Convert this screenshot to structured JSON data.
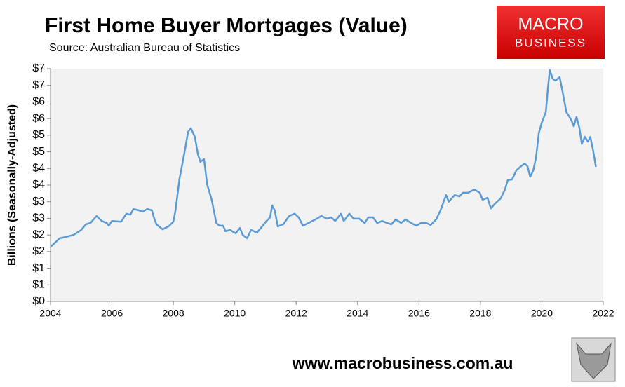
{
  "chart_data": {
    "type": "line",
    "title": "First Home Buyer Mortgages (Value)",
    "subtitle": "Source: Australian Bureau of Statistics",
    "y_label": "Billions (Seasonally-Adjusted)",
    "logo": [
      "MACRO",
      "BUSINESS"
    ],
    "footer": "www.macrobusiness.com.au",
    "x": [
      2004.0,
      2004.3,
      2004.5,
      2004.75,
      2005.0,
      2005.15,
      2005.3,
      2005.5,
      2005.67,
      2005.83,
      2005.9,
      2006.0,
      2006.3,
      2006.47,
      2006.6,
      2006.7,
      2006.88,
      2007.0,
      2007.15,
      2007.3,
      2007.35,
      2007.45,
      2007.65,
      2007.85,
      2008.0,
      2008.07,
      2008.2,
      2008.36,
      2008.48,
      2008.57,
      2008.7,
      2008.8,
      2008.88,
      2009.0,
      2009.1,
      2009.25,
      2009.4,
      2009.5,
      2009.62,
      2009.7,
      2009.85,
      2010.03,
      2010.17,
      2010.26,
      2010.4,
      2010.53,
      2010.72,
      2010.85,
      2011.03,
      2011.15,
      2011.22,
      2011.3,
      2011.4,
      2011.58,
      2011.77,
      2011.95,
      2012.08,
      2012.22,
      2012.4,
      2012.63,
      2012.82,
      2013.0,
      2013.14,
      2013.27,
      2013.46,
      2013.55,
      2013.73,
      2013.87,
      2014.05,
      2014.23,
      2014.35,
      2014.5,
      2014.64,
      2014.8,
      2014.96,
      2015.1,
      2015.24,
      2015.42,
      2015.56,
      2015.74,
      2015.92,
      2016.06,
      2016.24,
      2016.38,
      2016.56,
      2016.7,
      2016.88,
      2016.97,
      2017.16,
      2017.32,
      2017.43,
      2017.6,
      2017.8,
      2017.98,
      2018.07,
      2018.23,
      2018.34,
      2018.48,
      2018.66,
      2018.8,
      2018.89,
      2019.03,
      2019.17,
      2019.3,
      2019.44,
      2019.53,
      2019.62,
      2019.72,
      2019.81,
      2019.9,
      2020.0,
      2020.13,
      2020.2,
      2020.26,
      2020.35,
      2020.45,
      2020.58,
      2020.67,
      2020.8,
      2020.95,
      2021.04,
      2021.13,
      2021.22,
      2021.3,
      2021.4,
      2021.5,
      2021.58,
      2021.67,
      2021.76
    ],
    "series": [
      {
        "name": "First Home Buyer Mortgages",
        "color": "#5b9bd5",
        "values": [
          1.64,
          1.9,
          1.94,
          2.0,
          2.15,
          2.32,
          2.36,
          2.57,
          2.42,
          2.36,
          2.28,
          2.42,
          2.4,
          2.64,
          2.61,
          2.78,
          2.74,
          2.7,
          2.78,
          2.74,
          2.57,
          2.32,
          2.17,
          2.26,
          2.4,
          2.74,
          3.69,
          4.47,
          5.1,
          5.21,
          4.95,
          4.43,
          4.2,
          4.28,
          3.52,
          3.06,
          2.36,
          2.28,
          2.28,
          2.11,
          2.15,
          2.05,
          2.21,
          2.0,
          1.9,
          2.15,
          2.07,
          2.21,
          2.42,
          2.53,
          2.89,
          2.74,
          2.26,
          2.32,
          2.57,
          2.64,
          2.53,
          2.28,
          2.36,
          2.47,
          2.57,
          2.49,
          2.53,
          2.42,
          2.64,
          2.42,
          2.64,
          2.49,
          2.49,
          2.36,
          2.53,
          2.53,
          2.36,
          2.42,
          2.36,
          2.32,
          2.47,
          2.36,
          2.47,
          2.36,
          2.28,
          2.36,
          2.36,
          2.3,
          2.47,
          2.74,
          3.2,
          3.0,
          3.2,
          3.16,
          3.27,
          3.27,
          3.37,
          3.27,
          3.06,
          3.12,
          2.8,
          2.95,
          3.1,
          3.37,
          3.65,
          3.67,
          3.94,
          4.05,
          4.15,
          4.07,
          3.75,
          3.94,
          4.32,
          5.06,
          5.38,
          5.69,
          6.43,
          6.96,
          6.7,
          6.64,
          6.75,
          6.33,
          5.69,
          5.48,
          5.27,
          5.55,
          5.23,
          4.74,
          4.95,
          4.81,
          4.95,
          4.53,
          4.05
        ]
      }
    ],
    "xlim": [
      2004,
      2022
    ],
    "xticks": [
      2004,
      2006,
      2008,
      2010,
      2012,
      2014,
      2016,
      2018,
      2020,
      2022
    ],
    "ylim": [
      0,
      7
    ],
    "yticks": [
      {
        "value": 0,
        "label": "$0"
      },
      {
        "value": 0.5,
        "label": "$1"
      },
      {
        "value": 1,
        "label": "$1"
      },
      {
        "value": 1.5,
        "label": "$2"
      },
      {
        "value": 2,
        "label": "$2"
      },
      {
        "value": 2.5,
        "label": "$3"
      },
      {
        "value": 3,
        "label": "$3"
      },
      {
        "value": 3.5,
        "label": "$4"
      },
      {
        "value": 4,
        "label": "$4"
      },
      {
        "value": 4.5,
        "label": "$5"
      },
      {
        "value": 5,
        "label": "$5"
      },
      {
        "value": 5.5,
        "label": "$6"
      },
      {
        "value": 6,
        "label": "$6"
      },
      {
        "value": 6.5,
        "label": "$7"
      },
      {
        "value": 7,
        "label": "$7"
      }
    ]
  }
}
